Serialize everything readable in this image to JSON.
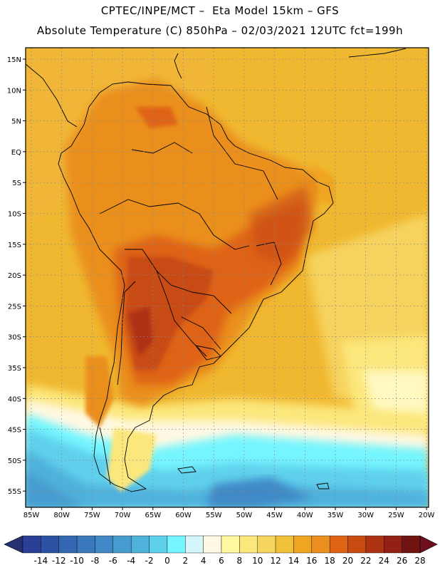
{
  "header": {
    "title_line1": "CPTEC/INPE/MCT –  Eta Model 15km – GFS",
    "title_line2": "Absolute Temperature (C) 850hPa – 02/03/2021 12UTC fct=199h"
  },
  "map": {
    "lat_labels": [
      "15N",
      "10N",
      "5N",
      "EQ",
      "5S",
      "10S",
      "15S",
      "20S",
      "25S",
      "30S",
      "35S",
      "40S",
      "45S",
      "50S",
      "55S"
    ],
    "lon_labels": [
      "85W",
      "80W",
      "75W",
      "70W",
      "65W",
      "60W",
      "55W",
      "50W",
      "45W",
      "40W",
      "35W",
      "30W",
      "25W",
      "20W"
    ]
  },
  "colorbar": {
    "labels": [
      "-14",
      "-12",
      "-10",
      "-8",
      "-6",
      "-4",
      "-2",
      "0",
      "2",
      "4",
      "6",
      "8",
      "10",
      "12",
      "14",
      "16",
      "18",
      "20",
      "22",
      "24",
      "26",
      "28"
    ],
    "colors": [
      "#2a3f95",
      "#2e52a3",
      "#3566b1",
      "#3b78bb",
      "#4089c6",
      "#469ccf",
      "#4fb1dc",
      "#5fd0ec",
      "#75f5ff",
      "#d5f6fb",
      "#fff8e2",
      "#fff8a1",
      "#fce77c",
      "#f6d55e",
      "#f1c13c",
      "#f0a520",
      "#ea8f1d",
      "#df6314",
      "#c84b12",
      "#ae3313",
      "#922015",
      "#701412"
    ],
    "under_color": "#253173",
    "over_color": "#6e0f1e"
  }
}
